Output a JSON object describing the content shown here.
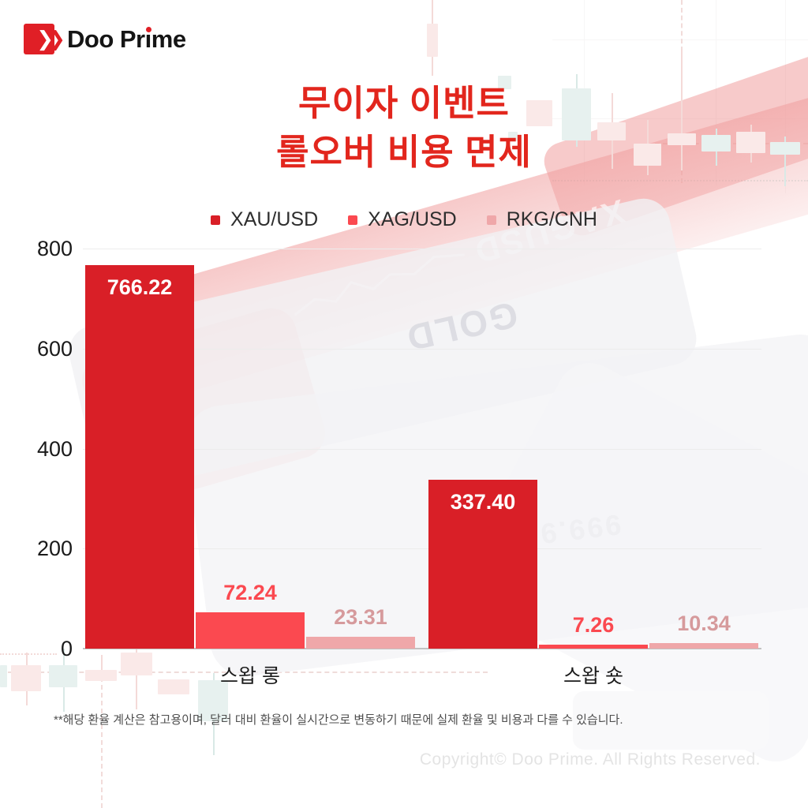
{
  "logo": {
    "brand": "Doo Prime"
  },
  "title": {
    "line1": "무이자 이벤트",
    "line2": "롤오버 비용 면제"
  },
  "theme": {
    "title_red": "#E2261D",
    "brand_red": "#E01F26",
    "grid_line": "#ECECEC",
    "axis_line": "#C2C2C2"
  },
  "chart_data": {
    "type": "bar",
    "title": "무이자 이벤트 롤오버 비용 면제",
    "categories": [
      "스왑 롱",
      "스왑 숏"
    ],
    "series": [
      {
        "name": "XAU/USD",
        "color": "#D91F27",
        "label_color": "#FFFFFF",
        "values": [
          766.22,
          337.4
        ]
      },
      {
        "name": "XAG/USD",
        "color": "#FB4950",
        "label_color": "#FB4950",
        "values": [
          72.24,
          7.26
        ]
      },
      {
        "name": "RKG/CNH",
        "color": "#EFA7A9",
        "label_color": "#D69A9C",
        "values": [
          23.31,
          10.34
        ]
      }
    ],
    "ylim": [
      0,
      800
    ],
    "yticks": [
      0,
      200,
      400,
      600,
      800
    ],
    "grid": true,
    "legend_position": "top",
    "value_label_decimals": 2
  },
  "background": {
    "gold_bar_texts": [
      "XAGUSD",
      "GOLD",
      "999.9"
    ]
  },
  "footnote": "**해당 환율 계산은 참고용이며, 달러 대비 환율이 실시간으로 변동하기 때문에 실제 환율 및 비용과 다를 수 있습니다.",
  "copyright": "Copyright© Doo Prime. All Rights Reserved."
}
